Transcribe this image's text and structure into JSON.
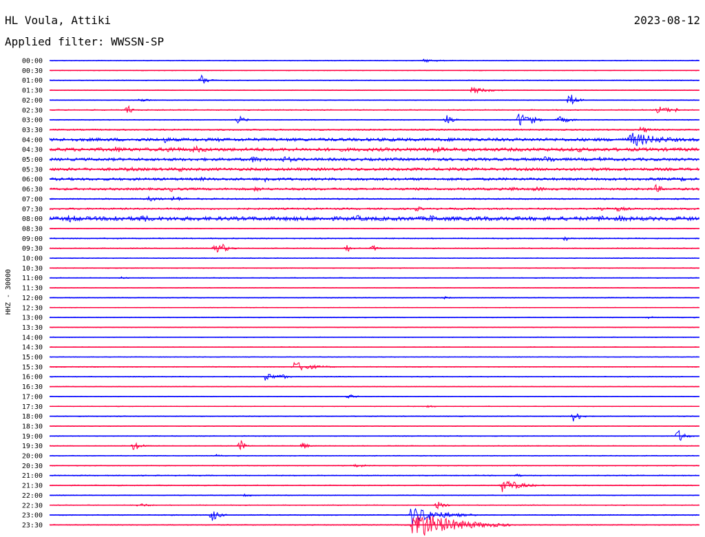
{
  "header": {
    "station": "HL Voula, Attiki",
    "date": "2023-08-12",
    "filter": "Applied filter: WWSSN-SP"
  },
  "chart_data": {
    "type": "line",
    "title": "HL Voula, Attiki",
    "subtitle": "Applied filter: WWSSN-SP",
    "date": "2023-08-12",
    "ylabel": "HHZ - 30000",
    "xlabel": "",
    "trace_colors": [
      "#0000ff",
      "#ff0040"
    ],
    "row_interval_minutes": 30,
    "x_range_minutes": [
      0,
      30
    ],
    "rows": [
      {
        "label": "00:00",
        "noise": 0.6,
        "events": [
          {
            "t": 17.3,
            "a": 2.5,
            "d": 0.8
          }
        ]
      },
      {
        "label": "00:30",
        "noise": 0.5,
        "events": []
      },
      {
        "label": "01:00",
        "noise": 0.6,
        "events": [
          {
            "t": 7.0,
            "a": 9,
            "d": 0.3
          }
        ]
      },
      {
        "label": "01:30",
        "noise": 0.5,
        "events": [
          {
            "t": 19.5,
            "a": 5,
            "d": 0.8
          }
        ]
      },
      {
        "label": "02:00",
        "noise": 0.5,
        "events": [
          {
            "t": 4.1,
            "a": 3,
            "d": 0.5
          },
          {
            "t": 24.0,
            "a": 12,
            "d": 0.3
          }
        ]
      },
      {
        "label": "02:30",
        "noise": 0.7,
        "events": [
          {
            "t": 3.6,
            "a": 8,
            "d": 0.2
          },
          {
            "t": 28.1,
            "a": 6,
            "d": 0.6
          },
          {
            "t": 28.9,
            "a": 3,
            "d": 0.3
          }
        ]
      },
      {
        "label": "03:00",
        "noise": 0.6,
        "events": [
          {
            "t": 8.7,
            "a": 7,
            "d": 0.3
          },
          {
            "t": 18.3,
            "a": 9,
            "d": 0.3
          },
          {
            "t": 21.7,
            "a": 14,
            "d": 0.3
          },
          {
            "t": 22.2,
            "a": 8,
            "d": 0.3
          },
          {
            "t": 23.5,
            "a": 6,
            "d": 0.5
          }
        ]
      },
      {
        "label": "03:30",
        "noise": 1.0,
        "events": [
          {
            "t": 27.3,
            "a": 5,
            "d": 0.5
          }
        ]
      },
      {
        "label": "04:00",
        "noise": 2.2,
        "events": [
          {
            "t": 5.3,
            "a": 5,
            "d": 0.5
          },
          {
            "t": 7.8,
            "a": 3,
            "d": 0.6
          },
          {
            "t": 13.3,
            "a": 3,
            "d": 0.6
          },
          {
            "t": 15.6,
            "a": 4,
            "d": 0.6
          },
          {
            "t": 18.6,
            "a": 4,
            "d": 0.6
          },
          {
            "t": 26.8,
            "a": 11,
            "d": 1.5
          }
        ]
      },
      {
        "label": "04:30",
        "noise": 2.4,
        "events": [
          {
            "t": 3.0,
            "a": 5,
            "d": 0.8
          },
          {
            "t": 5.5,
            "a": 5,
            "d": 0.8
          },
          {
            "t": 6.6,
            "a": 6,
            "d": 0.8
          },
          {
            "t": 17.7,
            "a": 6,
            "d": 0.6
          },
          {
            "t": 24.4,
            "a": 4,
            "d": 0.6
          }
        ]
      },
      {
        "label": "05:00",
        "noise": 2.0,
        "events": [
          {
            "t": 9.3,
            "a": 5,
            "d": 0.8
          },
          {
            "t": 10.8,
            "a": 5,
            "d": 0.8
          },
          {
            "t": 17.6,
            "a": 4,
            "d": 0.6
          },
          {
            "t": 22.9,
            "a": 6,
            "d": 0.6
          },
          {
            "t": 25.4,
            "a": 4,
            "d": 0.8
          }
        ]
      },
      {
        "label": "05:30",
        "noise": 2.0,
        "events": [
          {
            "t": 3.6,
            "a": 4,
            "d": 0.6
          },
          {
            "t": 6.0,
            "a": 4,
            "d": 0.6
          },
          {
            "t": 18.4,
            "a": 3,
            "d": 0.6
          },
          {
            "t": 25.0,
            "a": 3,
            "d": 0.6
          }
        ]
      },
      {
        "label": "06:00",
        "noise": 1.8,
        "events": [
          {
            "t": 7.0,
            "a": 3,
            "d": 0.6
          },
          {
            "t": 9.9,
            "a": 5,
            "d": 0.6
          },
          {
            "t": 29.2,
            "a": 4,
            "d": 0.3
          }
        ]
      },
      {
        "label": "06:30",
        "noise": 1.6,
        "events": [
          {
            "t": 5.6,
            "a": 4,
            "d": 0.6
          },
          {
            "t": 9.5,
            "a": 4,
            "d": 0.6
          },
          {
            "t": 21.3,
            "a": 4,
            "d": 0.6
          },
          {
            "t": 22.4,
            "a": 4,
            "d": 0.6
          },
          {
            "t": 28.0,
            "a": 7,
            "d": 0.3
          }
        ]
      },
      {
        "label": "07:00",
        "noise": 1.0,
        "events": [
          {
            "t": 4.6,
            "a": 4,
            "d": 0.6
          },
          {
            "t": 5.7,
            "a": 4,
            "d": 0.6
          }
        ]
      },
      {
        "label": "07:30",
        "noise": 1.2,
        "events": [
          {
            "t": 16.9,
            "a": 4,
            "d": 0.4
          },
          {
            "t": 25.4,
            "a": 4,
            "d": 0.6
          },
          {
            "t": 26.2,
            "a": 4,
            "d": 0.6
          }
        ]
      },
      {
        "label": "08:00",
        "noise": 2.8,
        "events": [
          {
            "t": 0.9,
            "a": 6,
            "d": 0.8
          },
          {
            "t": 2.9,
            "a": 6,
            "d": 0.8
          },
          {
            "t": 4.2,
            "a": 6,
            "d": 0.8
          },
          {
            "t": 14.2,
            "a": 5,
            "d": 0.6
          },
          {
            "t": 17.6,
            "a": 6,
            "d": 0.6
          },
          {
            "t": 19.9,
            "a": 5,
            "d": 0.6
          },
          {
            "t": 25.4,
            "a": 6,
            "d": 0.6
          },
          {
            "t": 26.3,
            "a": 5,
            "d": 0.6
          }
        ]
      },
      {
        "label": "08:30",
        "noise": 0.6,
        "events": []
      },
      {
        "label": "09:00",
        "noise": 0.8,
        "events": [
          {
            "t": 23.8,
            "a": 4,
            "d": 0.3
          }
        ]
      },
      {
        "label": "09:30",
        "noise": 0.7,
        "events": [
          {
            "t": 7.6,
            "a": 9,
            "d": 0.3
          },
          {
            "t": 7.9,
            "a": 9,
            "d": 0.3
          },
          {
            "t": 13.7,
            "a": 7,
            "d": 0.2
          },
          {
            "t": 14.9,
            "a": 7,
            "d": 0.2
          }
        ]
      },
      {
        "label": "10:00",
        "noise": 0.6,
        "events": []
      },
      {
        "label": "10:30",
        "noise": 0.6,
        "events": []
      },
      {
        "label": "11:00",
        "noise": 0.6,
        "events": [
          {
            "t": 3.3,
            "a": 2,
            "d": 0.3
          }
        ]
      },
      {
        "label": "11:30",
        "noise": 0.5,
        "events": []
      },
      {
        "label": "12:00",
        "noise": 0.6,
        "events": [
          {
            "t": 18.2,
            "a": 2,
            "d": 0.4
          }
        ]
      },
      {
        "label": "12:30",
        "noise": 0.5,
        "events": []
      },
      {
        "label": "13:00",
        "noise": 0.6,
        "events": [
          {
            "t": 27.6,
            "a": 2,
            "d": 0.4
          }
        ]
      },
      {
        "label": "13:30",
        "noise": 0.5,
        "events": []
      },
      {
        "label": "14:00",
        "noise": 0.5,
        "events": []
      },
      {
        "label": "14:30",
        "noise": 0.5,
        "events": []
      },
      {
        "label": "15:00",
        "noise": 0.5,
        "events": []
      },
      {
        "label": "15:30",
        "noise": 0.6,
        "events": [
          {
            "t": 11.3,
            "a": 8,
            "d": 0.8
          }
        ]
      },
      {
        "label": "16:00",
        "noise": 0.6,
        "events": [
          {
            "t": 10.0,
            "a": 8,
            "d": 0.3
          },
          {
            "t": 10.6,
            "a": 6,
            "d": 0.3
          }
        ]
      },
      {
        "label": "16:30",
        "noise": 0.5,
        "events": []
      },
      {
        "label": "17:00",
        "noise": 0.5,
        "events": [
          {
            "t": 13.8,
            "a": 4,
            "d": 0.3
          }
        ]
      },
      {
        "label": "17:30",
        "noise": 0.5,
        "events": [
          {
            "t": 17.4,
            "a": 2,
            "d": 0.4
          }
        ]
      },
      {
        "label": "18:00",
        "noise": 0.6,
        "events": [
          {
            "t": 24.2,
            "a": 9,
            "d": 0.3
          }
        ]
      },
      {
        "label": "18:30",
        "noise": 0.5,
        "events": []
      },
      {
        "label": "19:00",
        "noise": 0.6,
        "events": [
          {
            "t": 29.0,
            "a": 11,
            "d": 0.3
          }
        ]
      },
      {
        "label": "19:30",
        "noise": 0.6,
        "events": [
          {
            "t": 3.9,
            "a": 8,
            "d": 0.3
          },
          {
            "t": 8.8,
            "a": 10,
            "d": 0.2
          },
          {
            "t": 11.7,
            "a": 7,
            "d": 0.2
          }
        ]
      },
      {
        "label": "20:00",
        "noise": 0.6,
        "events": [
          {
            "t": 7.7,
            "a": 2,
            "d": 0.3
          }
        ]
      },
      {
        "label": "20:30",
        "noise": 0.6,
        "events": [
          {
            "t": 14.1,
            "a": 3,
            "d": 0.6
          }
        ]
      },
      {
        "label": "21:00",
        "noise": 0.7,
        "events": [
          {
            "t": 21.5,
            "a": 3,
            "d": 0.3
          }
        ]
      },
      {
        "label": "21:30",
        "noise": 0.7,
        "events": [
          {
            "t": 20.9,
            "a": 10,
            "d": 0.8
          }
        ]
      },
      {
        "label": "22:00",
        "noise": 0.6,
        "events": [
          {
            "t": 9.0,
            "a": 2,
            "d": 0.5
          }
        ]
      },
      {
        "label": "22:30",
        "noise": 0.6,
        "events": [
          {
            "t": 4.1,
            "a": 3,
            "d": 0.6
          },
          {
            "t": 17.9,
            "a": 7,
            "d": 0.3
          }
        ]
      },
      {
        "label": "23:00",
        "noise": 0.7,
        "events": [
          {
            "t": 7.5,
            "a": 10,
            "d": 0.3
          },
          {
            "t": 16.7,
            "a": 14,
            "d": 1.2
          }
        ]
      },
      {
        "label": "23:30",
        "noise": 0.7,
        "events": [
          {
            "t": 16.8,
            "a": 22,
            "d": 1.8
          }
        ]
      }
    ]
  }
}
